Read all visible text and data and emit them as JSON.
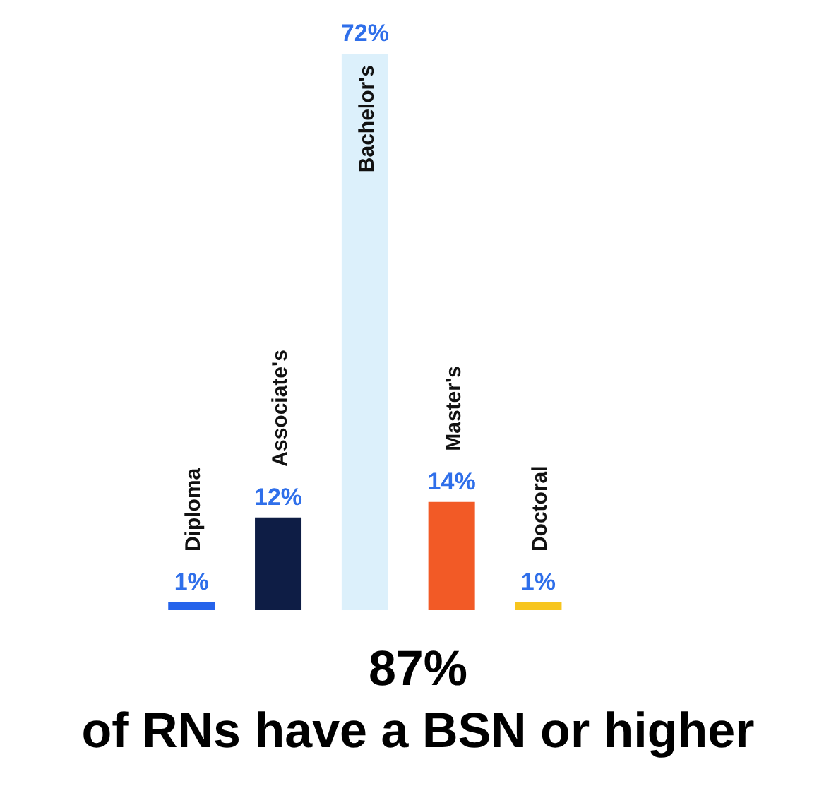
{
  "chart_data": {
    "type": "bar",
    "categories": [
      "Diploma",
      "Associate's",
      "Bachelor's",
      "Master's",
      "Doctoral"
    ],
    "values": [
      1,
      12,
      72,
      14,
      1
    ],
    "colors": [
      "#2563eb",
      "#0e1d45",
      "#dcf0fb",
      "#f25a26",
      "#f7c51e"
    ],
    "value_labels": [
      "1%",
      "12%",
      "72%",
      "14%",
      "1%"
    ],
    "annotations": [
      "87%",
      "of RNs have a BSN or higher"
    ]
  }
}
